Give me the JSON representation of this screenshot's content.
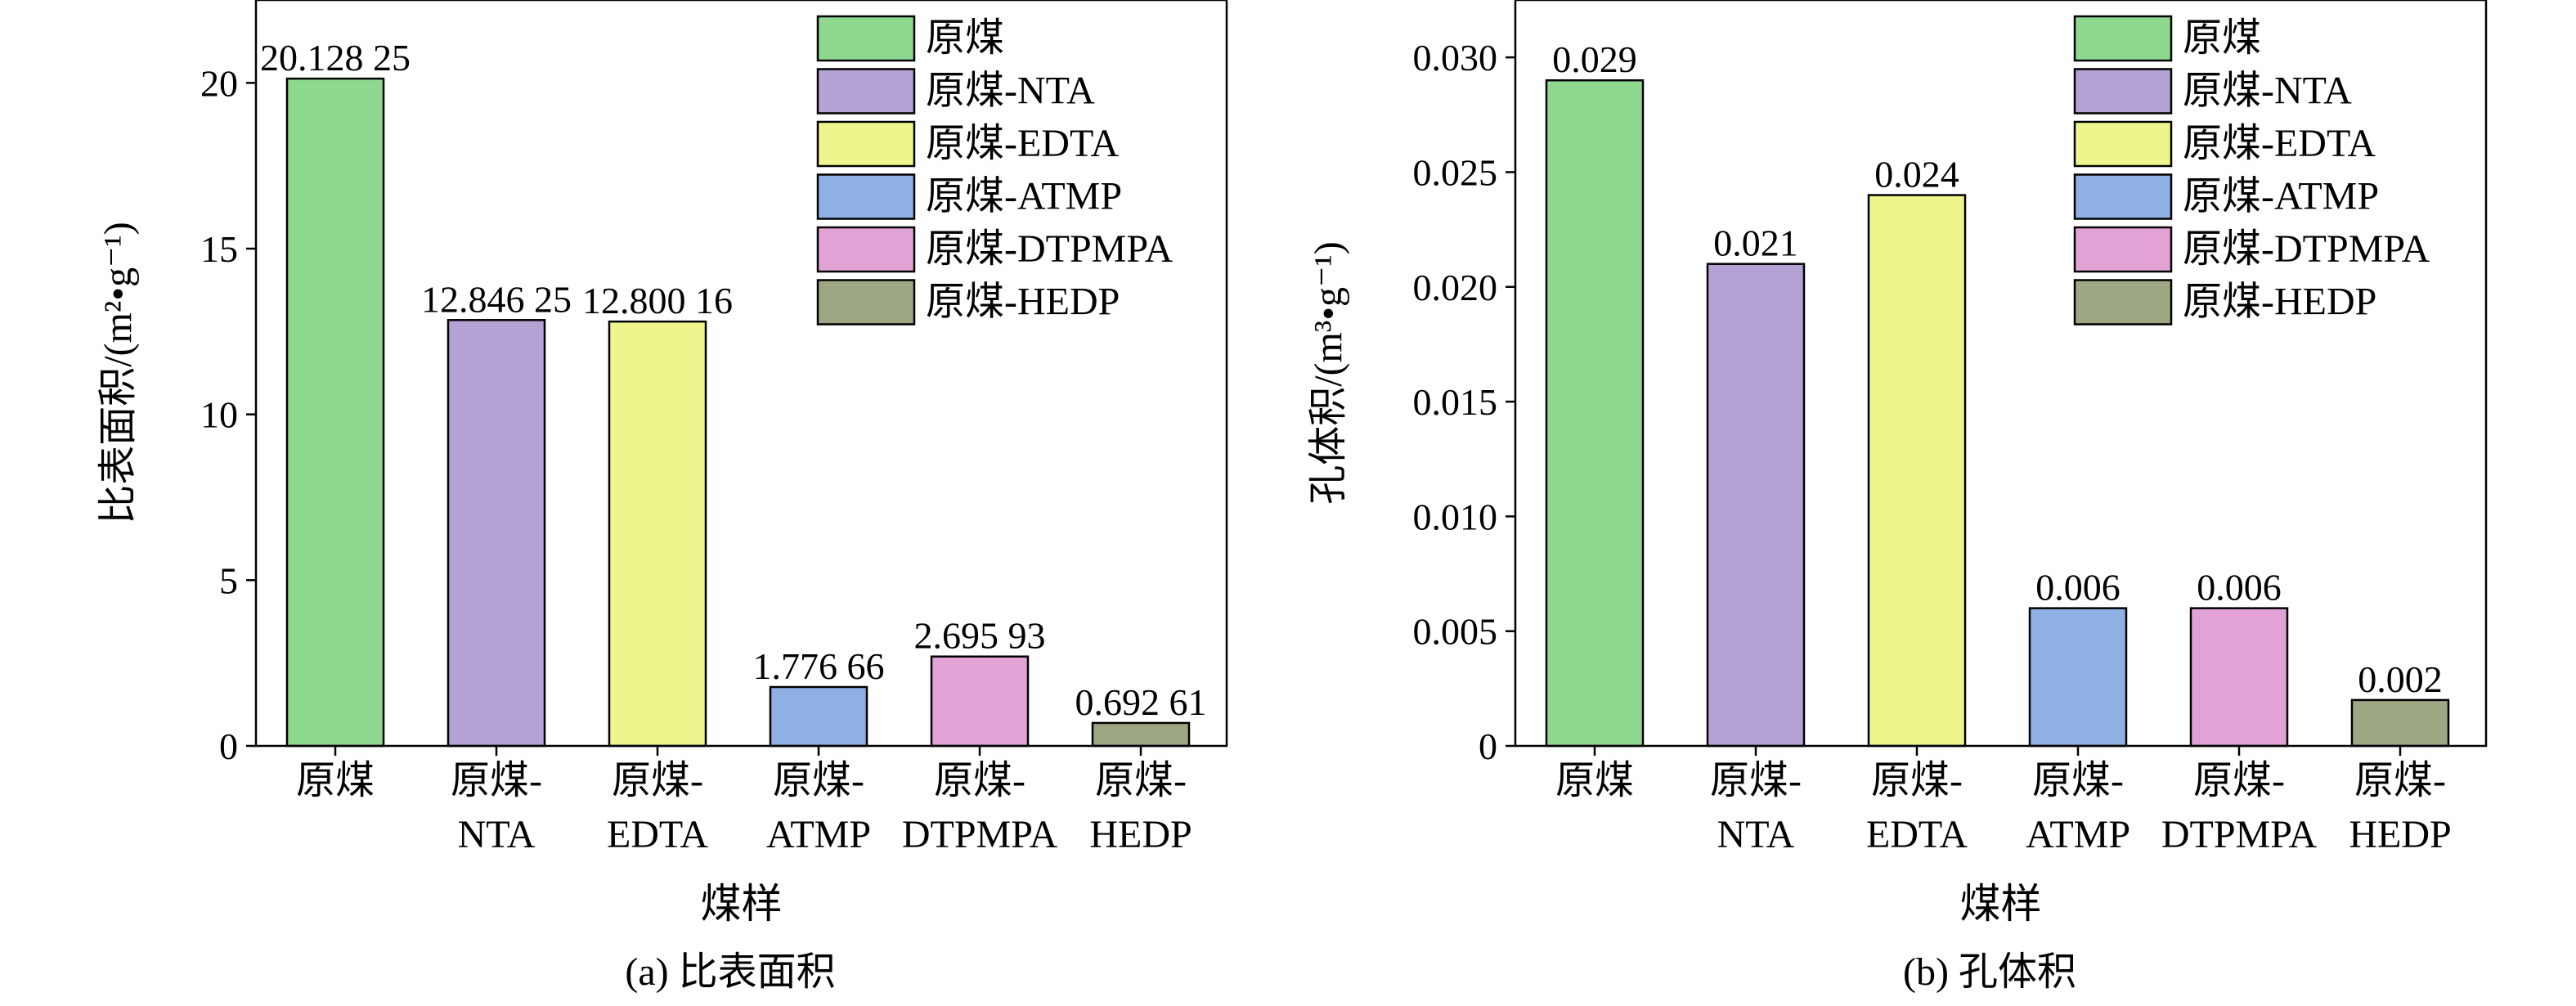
{
  "figure": {
    "subcaption_a": "(a) 比表面积",
    "subcaption_b": "(b) 孔体积"
  },
  "chart_data": [
    {
      "type": "bar",
      "title": "",
      "xlabel": "煤样",
      "ylabel": "比表面积/(m²•g⁻¹)",
      "ylim": [
        0,
        22.5
      ],
      "yticks": [
        0,
        5,
        10,
        15,
        20
      ],
      "ytick_labels": [
        "0",
        "5",
        "10",
        "15",
        "20"
      ],
      "categories": [
        "原煤",
        "原煤-NTA",
        "原煤-EDTA",
        "原煤-ATMP",
        "原煤-DTPMPA",
        "原煤-HEDP"
      ],
      "category_tick_lines": [
        [
          "原煤"
        ],
        [
          "原煤-",
          "NTA"
        ],
        [
          "原煤-",
          "EDTA"
        ],
        [
          "原煤-",
          "ATMP"
        ],
        [
          "原煤-",
          "DTPMPA"
        ],
        [
          "原煤-",
          "HEDP"
        ]
      ],
      "values": [
        20.12825,
        12.84625,
        12.80016,
        1.77666,
        2.69593,
        0.69261
      ],
      "value_labels": [
        "20.128 25",
        "12.846 25",
        "12.800 16",
        "1.776 66",
        "2.695 93",
        "0.692 61"
      ],
      "colors": [
        "#8fd88f",
        "#b5a2d4",
        "#eef58c",
        "#8fb0e3",
        "#e2a2d6",
        "#9ea784"
      ],
      "legend": [
        "原煤",
        "原煤-NTA",
        "原煤-EDTA",
        "原煤-ATMP",
        "原煤-DTPMPA",
        "原煤-HEDP"
      ],
      "legend_position": "top-right",
      "grid": false
    },
    {
      "type": "bar",
      "title": "",
      "xlabel": "煤样",
      "ylabel": "孔体积/(m³•g⁻¹)",
      "ylim": [
        0,
        0.0325
      ],
      "yticks": [
        0,
        0.005,
        0.01,
        0.015,
        0.02,
        0.025,
        0.03
      ],
      "ytick_labels": [
        "0",
        "0.005",
        "0.010",
        "0.015",
        "0.020",
        "0.025",
        "0.030"
      ],
      "categories": [
        "原煤",
        "原煤-NTA",
        "原煤-EDTA",
        "原煤-ATMP",
        "原煤-DTPMPA",
        "原煤-HEDP"
      ],
      "category_tick_lines": [
        [
          "原煤"
        ],
        [
          "原煤-",
          "NTA"
        ],
        [
          "原煤-",
          "EDTA"
        ],
        [
          "原煤-",
          "ATMP"
        ],
        [
          "原煤-",
          "DTPMPA"
        ],
        [
          "原煤-",
          "HEDP"
        ]
      ],
      "values": [
        0.029,
        0.021,
        0.024,
        0.006,
        0.006,
        0.002
      ],
      "value_labels": [
        "0.029",
        "0.021",
        "0.024",
        "0.006",
        "0.006",
        "0.002"
      ],
      "colors": [
        "#8fd88f",
        "#b5a2d4",
        "#eef58c",
        "#8fb0e3",
        "#e2a2d6",
        "#9ea784"
      ],
      "legend": [
        "原煤",
        "原煤-NTA",
        "原煤-EDTA",
        "原煤-ATMP",
        "原煤-DTPMPA",
        "原煤-HEDP"
      ],
      "legend_position": "top-right",
      "grid": false
    }
  ]
}
